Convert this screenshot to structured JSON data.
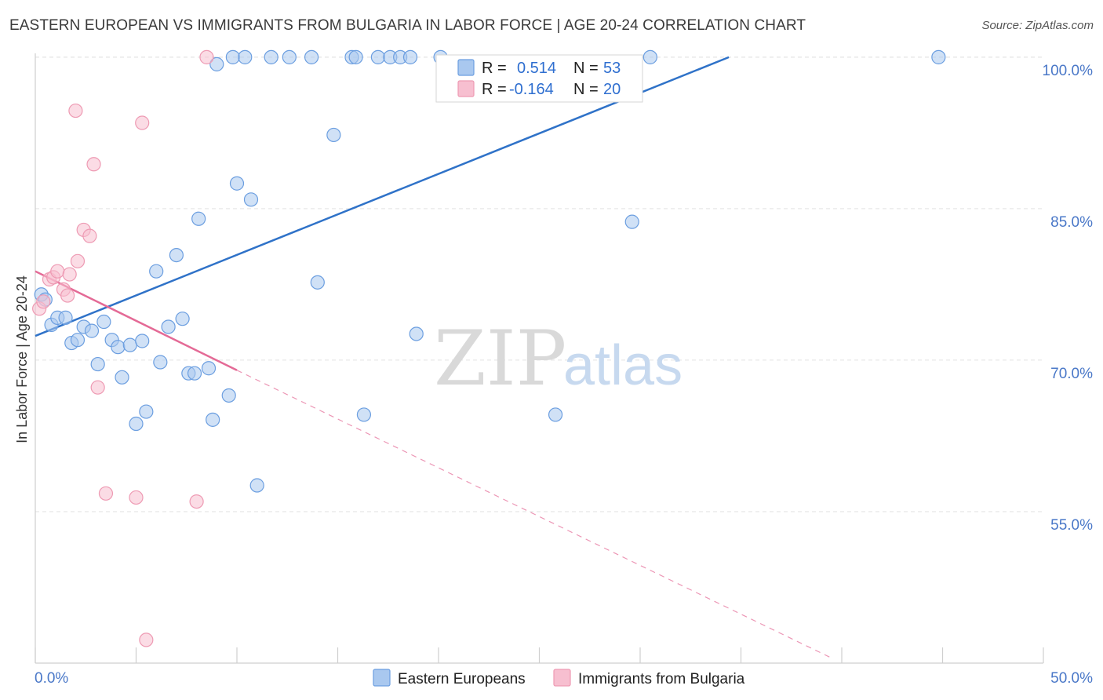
{
  "header": {
    "title": "EASTERN EUROPEAN VS IMMIGRANTS FROM BULGARIA IN LABOR FORCE | AGE 20-24 CORRELATION CHART",
    "source": "Source: ZipAtlas.com"
  },
  "watermark": {
    "zip": "ZIP",
    "atlas": "atlas"
  },
  "colors": {
    "blue_fill": "#a9c8ef",
    "blue_stroke": "#6b9ee0",
    "blue_line": "#2f72c8",
    "pink_fill": "#f7bfd0",
    "pink_stroke": "#ee9ab3",
    "pink_line": "#e46a96",
    "tick_text": "#4a78c8",
    "grid": "#e2e2e2"
  },
  "legend": {
    "r_label": "R =",
    "n_label": "N =",
    "series1_r": "0.514",
    "series1_n": "53",
    "series2_r": "-0.164",
    "series2_n": "20"
  },
  "chart_data": {
    "type": "scatter",
    "title": "EASTERN EUROPEAN VS IMMIGRANTS FROM BULGARIA IN LABOR FORCE | AGE 20-24 CORRELATION CHART",
    "xlabel": "",
    "ylabel": "In Labor Force | Age 20-24",
    "xlim": [
      0,
      50
    ],
    "ylim": [
      40,
      101
    ],
    "x_tick_labels": [
      "0.0%",
      "50.0%"
    ],
    "y_ticks": [
      55,
      70,
      85,
      100
    ],
    "y_tick_labels": [
      "55.0%",
      "70.0%",
      "85.0%",
      "100.0%"
    ],
    "legend_position": "top-center",
    "series": [
      {
        "name": "Eastern Europeans",
        "color": "blue",
        "trend": {
          "x": [
            0,
            34.4
          ],
          "y": [
            72.4,
            100
          ],
          "style": "solid"
        },
        "points": [
          {
            "x": 0.3,
            "y": 76.5
          },
          {
            "x": 0.5,
            "y": 76.0
          },
          {
            "x": 0.8,
            "y": 73.5
          },
          {
            "x": 1.1,
            "y": 74.2
          },
          {
            "x": 1.5,
            "y": 74.2
          },
          {
            "x": 1.8,
            "y": 71.7
          },
          {
            "x": 2.1,
            "y": 72.0
          },
          {
            "x": 2.4,
            "y": 73.3
          },
          {
            "x": 2.8,
            "y": 72.9
          },
          {
            "x": 3.1,
            "y": 69.6
          },
          {
            "x": 3.4,
            "y": 73.8
          },
          {
            "x": 3.8,
            "y": 72.0
          },
          {
            "x": 4.1,
            "y": 71.3
          },
          {
            "x": 4.3,
            "y": 68.3
          },
          {
            "x": 4.7,
            "y": 71.5
          },
          {
            "x": 5.0,
            "y": 63.7
          },
          {
            "x": 5.3,
            "y": 71.9
          },
          {
            "x": 5.5,
            "y": 64.9
          },
          {
            "x": 6.0,
            "y": 78.8
          },
          {
            "x": 6.2,
            "y": 69.8
          },
          {
            "x": 6.6,
            "y": 73.3
          },
          {
            "x": 7.0,
            "y": 80.4
          },
          {
            "x": 7.3,
            "y": 74.1
          },
          {
            "x": 7.6,
            "y": 68.7
          },
          {
            "x": 7.9,
            "y": 68.7
          },
          {
            "x": 8.1,
            "y": 84.0
          },
          {
            "x": 8.6,
            "y": 69.2
          },
          {
            "x": 8.8,
            "y": 64.1
          },
          {
            "x": 9.0,
            "y": 99.3
          },
          {
            "x": 9.6,
            "y": 66.5
          },
          {
            "x": 9.8,
            "y": 100.0
          },
          {
            "x": 10.0,
            "y": 87.5
          },
          {
            "x": 10.4,
            "y": 100.0
          },
          {
            "x": 10.7,
            "y": 85.9
          },
          {
            "x": 11.0,
            "y": 57.6
          },
          {
            "x": 11.7,
            "y": 100.0
          },
          {
            "x": 12.6,
            "y": 100.0
          },
          {
            "x": 13.7,
            "y": 100.0
          },
          {
            "x": 14.0,
            "y": 77.7
          },
          {
            "x": 14.8,
            "y": 92.3
          },
          {
            "x": 15.7,
            "y": 100.0
          },
          {
            "x": 15.9,
            "y": 100.0
          },
          {
            "x": 16.3,
            "y": 64.6
          },
          {
            "x": 17.0,
            "y": 100.0
          },
          {
            "x": 17.6,
            "y": 100.0
          },
          {
            "x": 18.1,
            "y": 100.0
          },
          {
            "x": 18.6,
            "y": 100.0
          },
          {
            "x": 18.9,
            "y": 72.6
          },
          {
            "x": 20.1,
            "y": 100.0
          },
          {
            "x": 25.8,
            "y": 64.6
          },
          {
            "x": 30.5,
            "y": 100.0
          },
          {
            "x": 29.6,
            "y": 83.7
          },
          {
            "x": 44.8,
            "y": 100.0
          }
        ]
      },
      {
        "name": "Immigrants from Bulgaria",
        "color": "pink",
        "trend": {
          "x": [
            0,
            10
          ],
          "y": [
            78.8,
            69.0
          ],
          "style": "solid",
          "extended_to": [
            39.5,
            40.5
          ]
        },
        "points": [
          {
            "x": 0.2,
            "y": 75.1
          },
          {
            "x": 0.4,
            "y": 75.8
          },
          {
            "x": 0.7,
            "y": 78.0
          },
          {
            "x": 0.9,
            "y": 78.2
          },
          {
            "x": 1.1,
            "y": 78.8
          },
          {
            "x": 1.4,
            "y": 77.0
          },
          {
            "x": 1.6,
            "y": 76.4
          },
          {
            "x": 1.7,
            "y": 78.5
          },
          {
            "x": 2.0,
            "y": 94.7
          },
          {
            "x": 2.1,
            "y": 79.8
          },
          {
            "x": 2.4,
            "y": 82.9
          },
          {
            "x": 2.7,
            "y": 82.3
          },
          {
            "x": 2.9,
            "y": 89.4
          },
          {
            "x": 3.1,
            "y": 67.3
          },
          {
            "x": 3.5,
            "y": 56.8
          },
          {
            "x": 5.0,
            "y": 56.4
          },
          {
            "x": 5.3,
            "y": 93.5
          },
          {
            "x": 5.5,
            "y": 42.3
          },
          {
            "x": 8.0,
            "y": 56.0
          },
          {
            "x": 8.5,
            "y": 100.0
          }
        ]
      }
    ]
  },
  "bottom_legend": {
    "series1": "Eastern Europeans",
    "series2": "Immigrants from Bulgaria"
  }
}
